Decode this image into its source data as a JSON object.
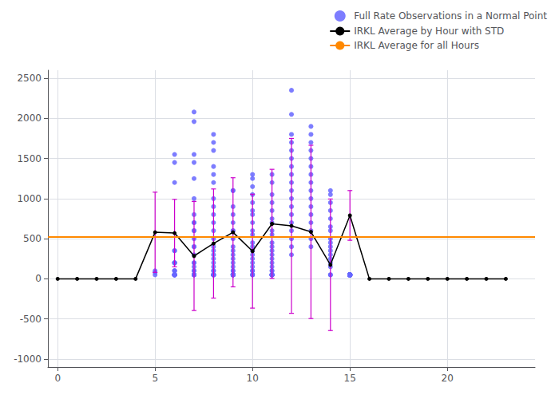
{
  "chart_data": {
    "type": "scatter",
    "xlim": [
      -0.5,
      24.5
    ],
    "xticks": [
      0,
      5,
      10,
      15,
      20
    ],
    "ylim": [
      -1100,
      2600
    ],
    "yticks": [
      -1000,
      -500,
      0,
      500,
      1000,
      1500,
      2000,
      2500
    ],
    "grid": true,
    "legend": "upper right",
    "series": [
      {
        "name": "Full Rate Observations in a Normal Point",
        "type": "scatter",
        "color": "#6666ff",
        "marker": "circle",
        "x": [
          5,
          5,
          5,
          6,
          6,
          6,
          6,
          6,
          6,
          6,
          6,
          6,
          6,
          6,
          6,
          6,
          6,
          6,
          6,
          6,
          6,
          6,
          6,
          6,
          7,
          7,
          7,
          7,
          7,
          7,
          7,
          7,
          7,
          7,
          7,
          7,
          7,
          7,
          7,
          7,
          7,
          7,
          7,
          7,
          7,
          7,
          7,
          7,
          7,
          8,
          8,
          8,
          8,
          8,
          8,
          8,
          8,
          8,
          8,
          8,
          8,
          8,
          8,
          8,
          8,
          8,
          8,
          8,
          8,
          8,
          8,
          8,
          8,
          8,
          8,
          8,
          9,
          9,
          9,
          9,
          9,
          9,
          9,
          9,
          9,
          9,
          9,
          9,
          9,
          9,
          9,
          9,
          9,
          9,
          9,
          9,
          9,
          9,
          9,
          9,
          9,
          9,
          10,
          10,
          10,
          10,
          10,
          10,
          10,
          10,
          10,
          10,
          10,
          10,
          10,
          10,
          10,
          10,
          10,
          10,
          10,
          10,
          10,
          10,
          11,
          11,
          11,
          11,
          11,
          11,
          11,
          11,
          11,
          11,
          11,
          11,
          11,
          11,
          11,
          11,
          11,
          11,
          11,
          11,
          11,
          11,
          11,
          11,
          11,
          11,
          12,
          12,
          12,
          12,
          12,
          12,
          12,
          12,
          12,
          12,
          12,
          12,
          12,
          12,
          12,
          12,
          12,
          12,
          13,
          13,
          13,
          13,
          13,
          13,
          13,
          13,
          13,
          13,
          13,
          13,
          13,
          13,
          13,
          13,
          14,
          14,
          14,
          14,
          14,
          14,
          14,
          14,
          14,
          14,
          14,
          14,
          14,
          14,
          14,
          14,
          14,
          15,
          15,
          15,
          15,
          15,
          15,
          15,
          15,
          15,
          15,
          15,
          15,
          15,
          15,
          15,
          15,
          15,
          15,
          15,
          15,
          15,
          15,
          15,
          15,
          15,
          15,
          15,
          15,
          15,
          15,
          15,
          15,
          15,
          15,
          15,
          15,
          15,
          15,
          15,
          15,
          15,
          15,
          15,
          15,
          15,
          15,
          15,
          15,
          15,
          15,
          15,
          15,
          15,
          15,
          15,
          15,
          15,
          15,
          15,
          15,
          15,
          15,
          15,
          15,
          15,
          15,
          15,
          15,
          15,
          15,
          15,
          15,
          15,
          15,
          15,
          15,
          15,
          15,
          15,
          15,
          15,
          15,
          15,
          15,
          15,
          15,
          15,
          15,
          15,
          15
        ],
        "values": [
          50,
          80,
          100,
          1550,
          1450,
          1200,
          50,
          200,
          200,
          350,
          350,
          200,
          200,
          100,
          50,
          100,
          100,
          50,
          50,
          50,
          50,
          50,
          50,
          50,
          2080,
          1960,
          1450,
          1550,
          1250,
          1000,
          600,
          800,
          700,
          700,
          600,
          500,
          400,
          400,
          300,
          200,
          200,
          150,
          100,
          100,
          50,
          50,
          50,
          50,
          50,
          1700,
          1800,
          1600,
          1400,
          1300,
          1200,
          1000,
          900,
          800,
          700,
          600,
          500,
          400,
          350,
          300,
          250,
          200,
          150,
          100,
          100,
          50,
          50,
          50,
          50,
          50,
          50,
          50,
          1100,
          1100,
          900,
          800,
          700,
          600,
          600,
          500,
          400,
          350,
          300,
          250,
          200,
          150,
          100,
          100,
          50,
          50,
          50,
          50,
          50,
          50,
          50,
          50,
          50,
          50,
          1300,
          1250,
          1150,
          1050,
          950,
          850,
          800,
          700,
          600,
          550,
          450,
          400,
          350,
          300,
          250,
          200,
          150,
          100,
          100,
          50,
          50,
          50,
          1300,
          1200,
          1050,
          950,
          850,
          750,
          700,
          600,
          550,
          450,
          400,
          350,
          300,
          250,
          200,
          150,
          100,
          100,
          50,
          50,
          50,
          50,
          50,
          50,
          50,
          50,
          2350,
          2050,
          1800,
          1700,
          1600,
          1500,
          1400,
          1300,
          1200,
          1100,
          1000,
          900,
          800,
          700,
          600,
          500,
          400,
          300,
          1900,
          1800,
          1700,
          1600,
          1500,
          1400,
          1300,
          1200,
          1100,
          1000,
          900,
          800,
          700,
          600,
          500,
          400,
          1100,
          1050,
          950,
          850,
          750,
          650,
          600,
          500,
          450,
          400,
          350,
          300,
          250,
          200,
          150,
          50,
          50,
          50,
          50,
          50,
          50,
          50,
          50,
          50,
          50,
          50,
          50,
          50,
          50,
          50,
          50,
          50,
          50,
          50,
          50,
          50,
          50,
          50,
          50,
          50,
          50,
          50,
          50,
          50,
          50,
          50,
          50,
          50,
          50,
          50,
          50,
          50,
          50,
          50,
          50,
          50,
          50,
          50,
          50,
          50,
          50,
          50,
          50,
          50,
          50,
          50,
          50,
          50,
          50,
          50,
          50,
          50,
          50,
          50,
          50,
          50,
          50,
          50,
          50,
          50,
          50,
          50,
          50,
          50,
          50,
          50,
          50,
          50,
          50,
          50,
          50,
          50,
          50,
          50,
          50,
          50,
          50,
          50,
          50,
          50,
          50,
          50,
          50,
          50,
          50,
          50,
          50
        ]
      },
      {
        "type": "errorbar",
        "color": "#cc00cc",
        "x": [
          0,
          1,
          2,
          3,
          4,
          5,
          6,
          7,
          8,
          9,
          10,
          11,
          12,
          13,
          14,
          15,
          16,
          17,
          18,
          19,
          20,
          21,
          22,
          23
        ],
        "values": [
          0,
          0,
          0,
          0,
          0,
          580,
          570,
          285,
          440,
          580,
          345,
          685,
          660,
          585,
          175,
          790,
          0,
          0,
          0,
          0,
          0,
          0,
          0,
          0
        ],
        "errors": [
          0,
          0,
          0,
          0,
          0,
          500,
          420,
          680,
          680,
          680,
          710,
          680,
          1090,
          1080,
          820,
          310,
          0,
          0,
          0,
          0,
          0,
          0,
          0,
          0
        ]
      },
      {
        "name": "IRKL Average by Hour with STD",
        "type": "line",
        "color": "#000000",
        "marker": "circle",
        "x": [
          0,
          1,
          2,
          3,
          4,
          5,
          6,
          7,
          8,
          9,
          10,
          11,
          12,
          13,
          14,
          15,
          16,
          17,
          18,
          19,
          20,
          21,
          22,
          23
        ],
        "values": [
          0,
          0,
          0,
          0,
          0,
          580,
          570,
          285,
          440,
          580,
          345,
          685,
          660,
          585,
          175,
          790,
          0,
          0,
          0,
          0,
          0,
          0,
          0,
          0
        ]
      },
      {
        "name": "IRKL Average for all Hours",
        "type": "hline",
        "color": "#ff8800",
        "values": [
          520
        ]
      }
    ]
  }
}
